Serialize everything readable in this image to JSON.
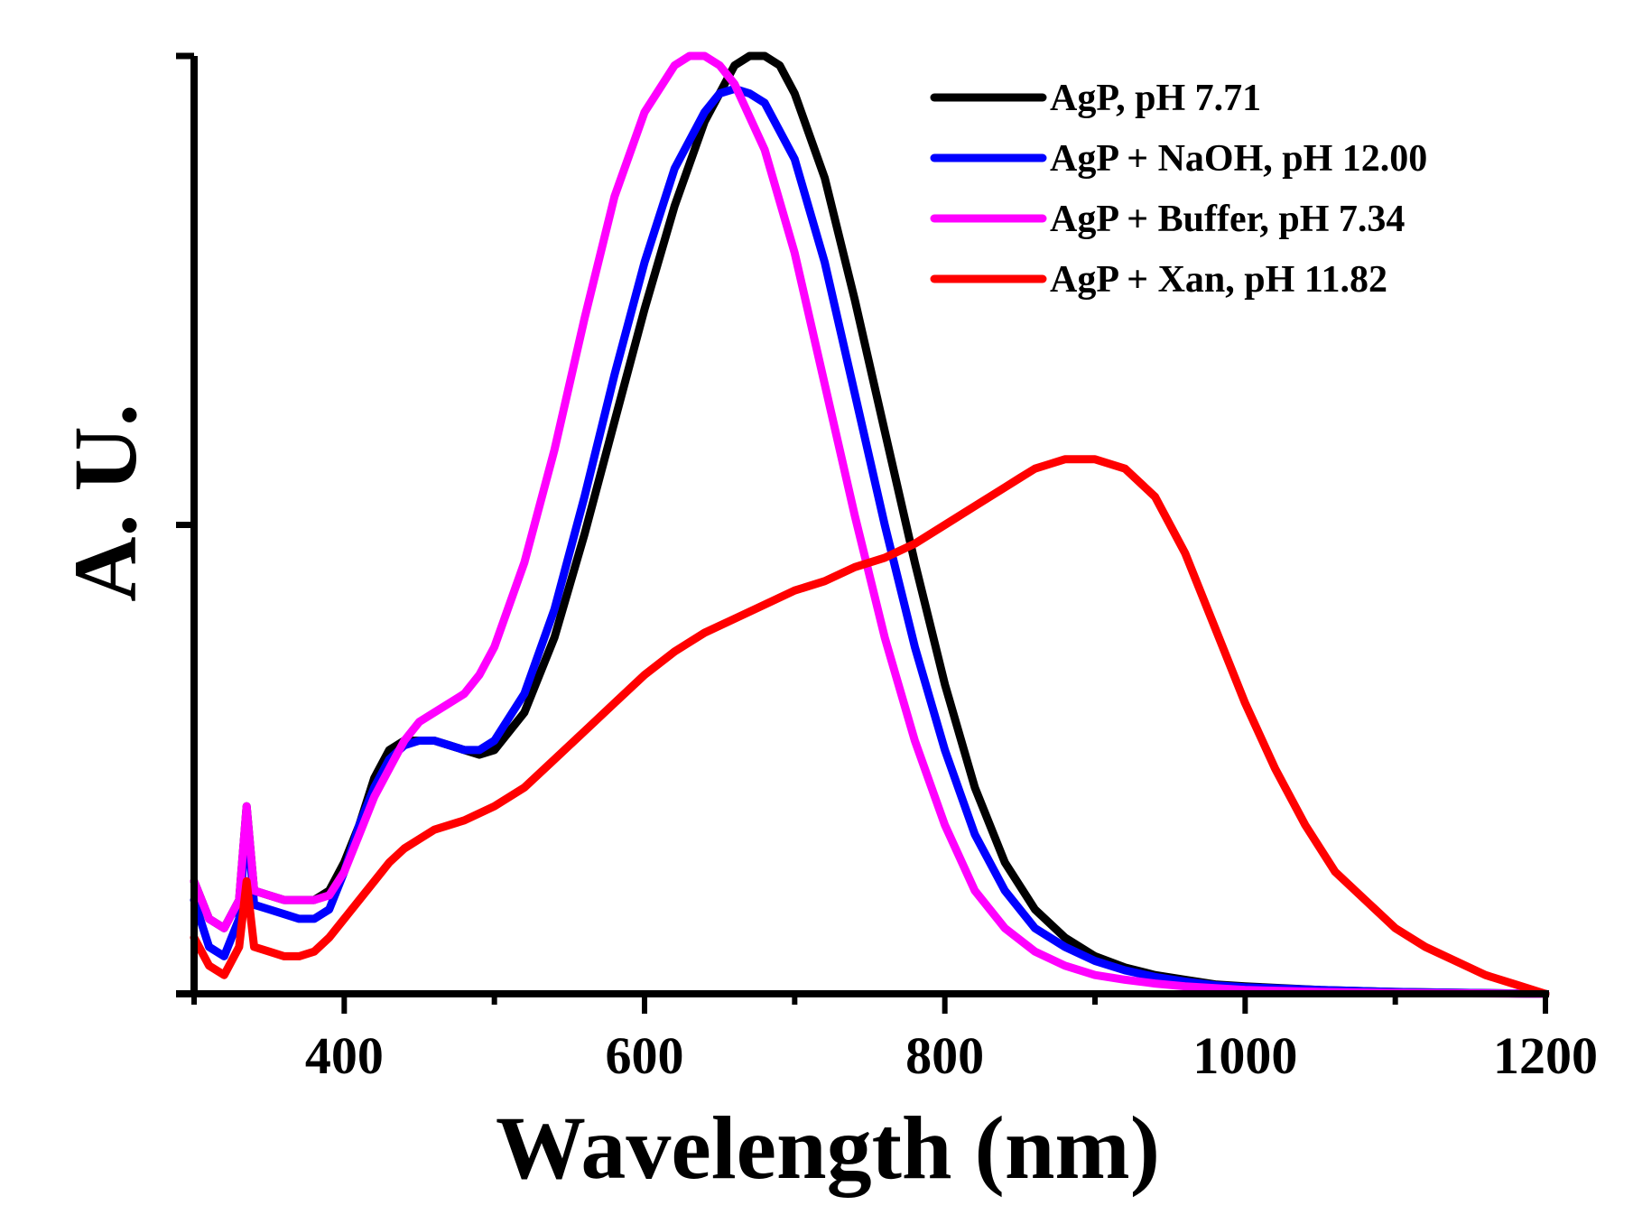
{
  "chart_data": {
    "type": "line",
    "title": "",
    "xlabel": "Wavelength (nm)",
    "ylabel": "A. U.",
    "xlim": [
      300,
      1200
    ],
    "ylim": [
      0,
      1
    ],
    "xticks": [
      400,
      600,
      800,
      1000,
      1200
    ],
    "xtick_labels": [
      "400",
      "600",
      "800",
      "1000",
      "1200"
    ],
    "yticks_labeled": false,
    "grid": false,
    "legend_position": "top-right",
    "series": [
      {
        "name": "AgP, pH 7.71",
        "color": "#000000",
        "x": [
          300,
          310,
          320,
          330,
          335,
          340,
          350,
          360,
          370,
          380,
          390,
          400,
          410,
          420,
          430,
          440,
          450,
          460,
          470,
          480,
          490,
          500,
          520,
          540,
          560,
          580,
          600,
          620,
          640,
          660,
          670,
          680,
          690,
          700,
          720,
          740,
          760,
          780,
          800,
          820,
          840,
          860,
          880,
          900,
          920,
          940,
          960,
          980,
          1000,
          1050,
          1100,
          1150,
          1200
        ],
        "y": [
          0.12,
          0.08,
          0.07,
          0.1,
          0.2,
          0.11,
          0.105,
          0.1,
          0.1,
          0.1,
          0.11,
          0.14,
          0.18,
          0.23,
          0.26,
          0.27,
          0.27,
          0.27,
          0.265,
          0.26,
          0.255,
          0.26,
          0.3,
          0.38,
          0.49,
          0.61,
          0.73,
          0.84,
          0.93,
          0.99,
          1.0,
          1.0,
          0.99,
          0.96,
          0.87,
          0.74,
          0.6,
          0.46,
          0.33,
          0.22,
          0.14,
          0.09,
          0.06,
          0.04,
          0.028,
          0.02,
          0.015,
          0.01,
          0.008,
          0.004,
          0.002,
          0.001,
          0.0
        ]
      },
      {
        "name": "AgP + NaOH, pH 12.00",
        "color": "#0000ff",
        "x": [
          300,
          310,
          320,
          330,
          335,
          340,
          350,
          360,
          370,
          380,
          390,
          400,
          410,
          420,
          430,
          440,
          450,
          460,
          470,
          480,
          490,
          500,
          520,
          540,
          560,
          580,
          600,
          620,
          640,
          650,
          660,
          670,
          680,
          700,
          720,
          740,
          760,
          780,
          800,
          820,
          840,
          860,
          880,
          900,
          920,
          940,
          960,
          980,
          1000,
          1050,
          1100,
          1150,
          1200
        ],
        "y": [
          0.1,
          0.05,
          0.04,
          0.08,
          0.19,
          0.095,
          0.09,
          0.085,
          0.08,
          0.08,
          0.09,
          0.13,
          0.18,
          0.22,
          0.25,
          0.265,
          0.27,
          0.27,
          0.265,
          0.26,
          0.26,
          0.27,
          0.32,
          0.41,
          0.53,
          0.66,
          0.78,
          0.88,
          0.94,
          0.96,
          0.965,
          0.96,
          0.95,
          0.89,
          0.78,
          0.64,
          0.5,
          0.37,
          0.26,
          0.17,
          0.11,
          0.07,
          0.05,
          0.035,
          0.025,
          0.018,
          0.013,
          0.009,
          0.007,
          0.004,
          0.002,
          0.001,
          0.0
        ]
      },
      {
        "name": "AgP + Buffer, pH 7.34",
        "color": "#ff00ff",
        "x": [
          300,
          310,
          320,
          330,
          335,
          340,
          350,
          360,
          370,
          380,
          390,
          400,
          410,
          420,
          430,
          440,
          450,
          460,
          470,
          480,
          490,
          500,
          520,
          540,
          560,
          580,
          600,
          620,
          630,
          640,
          650,
          660,
          680,
          700,
          720,
          740,
          760,
          780,
          800,
          820,
          840,
          860,
          880,
          900,
          920,
          940,
          960,
          980,
          1000,
          1050,
          1100,
          1150,
          1200
        ],
        "y": [
          0.12,
          0.08,
          0.07,
          0.1,
          0.2,
          0.11,
          0.105,
          0.1,
          0.1,
          0.1,
          0.105,
          0.13,
          0.17,
          0.21,
          0.24,
          0.27,
          0.29,
          0.3,
          0.31,
          0.32,
          0.34,
          0.37,
          0.46,
          0.58,
          0.72,
          0.85,
          0.94,
          0.99,
          1.0,
          1.0,
          0.99,
          0.97,
          0.9,
          0.79,
          0.65,
          0.51,
          0.38,
          0.27,
          0.18,
          0.11,
          0.07,
          0.045,
          0.03,
          0.02,
          0.015,
          0.011,
          0.008,
          0.006,
          0.004,
          0.002,
          0.001,
          0.0005,
          0.0
        ]
      },
      {
        "name": "AgP + Xan, pH 11.82",
        "color": "#ff0000",
        "x": [
          300,
          310,
          320,
          330,
          335,
          340,
          350,
          360,
          370,
          380,
          390,
          400,
          410,
          420,
          430,
          440,
          450,
          460,
          480,
          500,
          520,
          540,
          560,
          580,
          600,
          620,
          640,
          660,
          680,
          700,
          720,
          740,
          760,
          780,
          800,
          820,
          840,
          850,
          860,
          870,
          880,
          900,
          920,
          940,
          960,
          980,
          1000,
          1020,
          1040,
          1060,
          1080,
          1100,
          1120,
          1140,
          1160,
          1180,
          1200
        ],
        "y": [
          0.06,
          0.03,
          0.02,
          0.05,
          0.12,
          0.05,
          0.045,
          0.04,
          0.04,
          0.045,
          0.06,
          0.08,
          0.1,
          0.12,
          0.14,
          0.155,
          0.165,
          0.175,
          0.185,
          0.2,
          0.22,
          0.25,
          0.28,
          0.31,
          0.34,
          0.365,
          0.385,
          0.4,
          0.415,
          0.43,
          0.44,
          0.455,
          0.465,
          0.48,
          0.5,
          0.52,
          0.54,
          0.55,
          0.56,
          0.565,
          0.57,
          0.57,
          0.56,
          0.53,
          0.47,
          0.39,
          0.31,
          0.24,
          0.18,
          0.13,
          0.1,
          0.07,
          0.05,
          0.035,
          0.02,
          0.01,
          0.0
        ]
      }
    ]
  }
}
